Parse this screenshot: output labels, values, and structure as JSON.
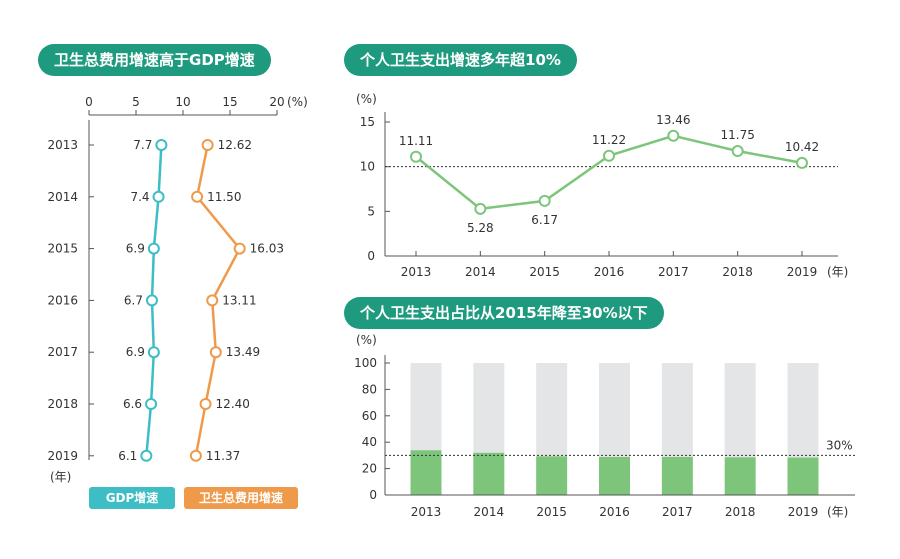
{
  "colors": {
    "teal": "#3dbdc4",
    "orange": "#ef9a4a",
    "green": "#7cc57b",
    "gray": "#e4e5e6",
    "pill": "#1e9a7e",
    "axis": "#555555"
  },
  "left": {
    "title": "卫生总费用增速高于GDP增速",
    "unit": "(%)",
    "year_unit": "(年)",
    "legend_gdp": "GDP增速",
    "legend_health": "卫生总费用增速"
  },
  "top_right": {
    "title": "个人卫生支出增速多年超10%",
    "unit": "(%)",
    "year_unit": "(年)"
  },
  "bottom_right": {
    "title": "个人卫生支出占比从2015年降至30%以下",
    "unit": "(%)",
    "year_unit": "(年)",
    "ref_label": "30%"
  },
  "chart_data": [
    {
      "type": "line",
      "title": "卫生总费用增速高于GDP增速",
      "orientation": "horizontal-values",
      "categories": [
        "2013",
        "2014",
        "2015",
        "2016",
        "2017",
        "2018",
        "2019"
      ],
      "series": [
        {
          "name": "GDP增速",
          "values": [
            7.7,
            7.4,
            6.9,
            6.7,
            6.9,
            6.6,
            6.1
          ],
          "labels": [
            "7.7",
            "7.4",
            "6.9",
            "6.7",
            "6.9",
            "6.6",
            "6.1"
          ]
        },
        {
          "name": "卫生总费用增速",
          "values": [
            12.62,
            11.5,
            16.03,
            13.11,
            13.49,
            12.4,
            11.37
          ],
          "labels": [
            "12.62",
            "11.50",
            "16.03",
            "13.11",
            "13.49",
            "12.40",
            "11.37"
          ]
        }
      ],
      "xlim": [
        0,
        20
      ],
      "ticks": [
        "0",
        "5",
        "10",
        "15",
        "20"
      ],
      "xlabel": "(%)",
      "ylabel": "(年)"
    },
    {
      "type": "line",
      "title": "个人卫生支出增速多年超10%",
      "categories": [
        "2013",
        "2014",
        "2015",
        "2016",
        "2017",
        "2018",
        "2019"
      ],
      "values": [
        11.11,
        5.28,
        6.17,
        11.22,
        13.46,
        11.75,
        10.42
      ],
      "labels": [
        "11.11",
        "5.28",
        "6.17",
        "11.22",
        "13.46",
        "11.75",
        "10.42"
      ],
      "ylim": [
        0,
        15
      ],
      "ticks": [
        "0",
        "5",
        "10",
        "15"
      ],
      "reference_line": 10,
      "ylabel": "(%)",
      "xlabel": "(年)"
    },
    {
      "type": "bar",
      "stacked": true,
      "title": "个人卫生支出占比从2015年降至30%以下",
      "categories": [
        "2013",
        "2014",
        "2015",
        "2016",
        "2017",
        "2018",
        "2019"
      ],
      "values": [
        33.9,
        32.0,
        29.3,
        28.8,
        28.8,
        28.6,
        28.4
      ],
      "total": 100,
      "ylim": [
        0,
        100
      ],
      "ticks": [
        "0",
        "20",
        "40",
        "60",
        "80",
        "100"
      ],
      "reference_line": 30,
      "reference_label": "30%",
      "ylabel": "(%)",
      "xlabel": "(年)"
    }
  ]
}
